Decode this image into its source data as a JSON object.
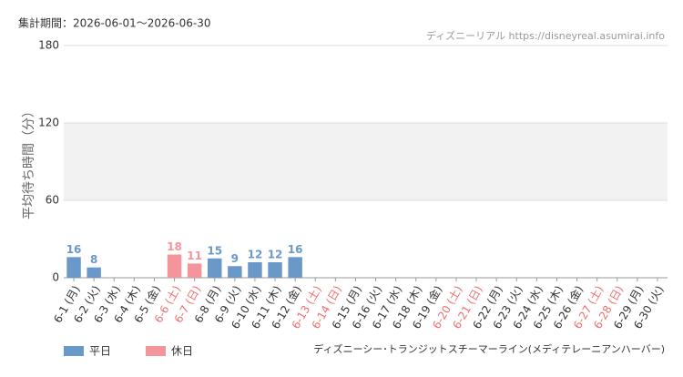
{
  "chart_data": {
    "type": "bar",
    "title": "集計期間：2026-06-01～2026-06-30",
    "source": "ディズニーリアル https://disneyreal.asumirai.info",
    "y_label": "平均待ち時間（分）",
    "attraction": "ディズニーシー･トランジットスチーマーライン(メディテレーニアンハーバー)",
    "categories": [
      "6-1 (月)",
      "6-2 (火)",
      "6-3 (水)",
      "6-4 (木)",
      "6-5 (金)",
      "6-6 (土)",
      "6-7 (日)",
      "6-8 (月)",
      "6-9 (火)",
      "6-10 (水)",
      "6-11 (木)",
      "6-12 (金)",
      "6-13 (土)",
      "6-14 (日)",
      "6-15 (月)",
      "6-16 (火)",
      "6-17 (水)",
      "6-18 (木)",
      "6-19 (金)",
      "6-20 (土)",
      "6-21 (日)",
      "6-22 (月)",
      "6-23 (火)",
      "6-24 (水)",
      "6-25 (木)",
      "6-26 (金)",
      "6-27 (土)",
      "6-28 (日)",
      "6-29 (月)",
      "6-30 (火)"
    ],
    "category_colors": [
      "#333",
      "#333",
      "#333",
      "#333",
      "#333",
      "#f07070",
      "#f07070",
      "#333",
      "#333",
      "#333",
      "#333",
      "#333",
      "#f07070",
      "#f07070",
      "#333",
      "#333",
      "#333",
      "#333",
      "#333",
      "#f07070",
      "#f07070",
      "#333",
      "#333",
      "#333",
      "#333",
      "#333",
      "#f07070",
      "#f07070",
      "#333",
      "#333"
    ],
    "series": [
      {
        "name": "平日",
        "color": "#6a98c8",
        "values": [
          16,
          8,
          null,
          null,
          null,
          null,
          null,
          15,
          9,
          12,
          12,
          16,
          null,
          null,
          null,
          null,
          null,
          null,
          null,
          null,
          null,
          null,
          null,
          null,
          null,
          null,
          null,
          null,
          null,
          null
        ]
      },
      {
        "name": "休日",
        "color": "#f4959b",
        "values": [
          null,
          null,
          null,
          null,
          null,
          18,
          11,
          null,
          null,
          null,
          null,
          null,
          null,
          null,
          null,
          null,
          null,
          null,
          null,
          null,
          null,
          null,
          null,
          null,
          null,
          null,
          null,
          null,
          null,
          null
        ]
      }
    ],
    "ylim": [
      0,
      180
    ],
    "yticks": [
      0,
      60,
      120,
      180
    ],
    "grid": true
  }
}
